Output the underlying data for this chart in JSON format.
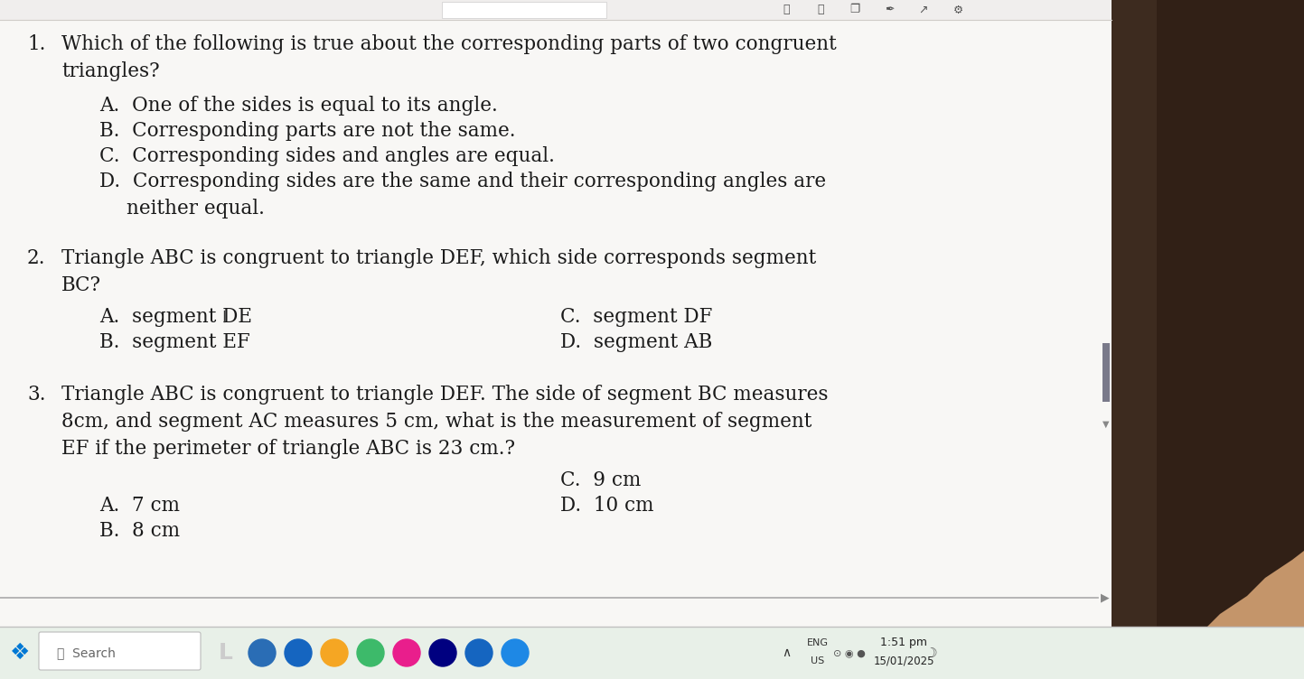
{
  "bg_color": "#f0eeeb",
  "content_bg": "#f8f7f5",
  "text_color": "#1a1a1a",
  "font_size_body": 15.5,
  "q1_number": "1.",
  "q2_number": "2.",
  "q3_number": "3.",
  "q1_line1": "Which of the following is true about the corresponding parts of two congruent",
  "q1_line2": "triangles?",
  "q1_optA": "A.  One of the sides is equal to its angle.",
  "q1_optB": "B.  Corresponding parts are not the same.",
  "q1_optC": "C.  Corresponding sides and angles are equal.",
  "q1_optD1": "D.  Corresponding sides are the same and their corresponding angles are",
  "q1_optD2": "neither equal.",
  "q2_line1": "Triangle ABC is congruent to triangle DEF, which side corresponds segment",
  "q2_line2": "BC?",
  "q2_optA": "A.  segment DE",
  "q2_optB": "B.  segment EF",
  "q2_optC": "C.  segment DF",
  "q2_optD": "D.  segment AB",
  "q3_line1": "Triangle ABC is congruent to triangle DEF. The side of segment BC measures",
  "q3_line2": "8cm, and segment AC measures 5 cm, what is the measurement of segment",
  "q3_line3": "EF if the perimeter of triangle ABC is 23 cm.?",
  "q3_optA": "A.  7 cm",
  "q3_optB": "B.  8 cm",
  "q3_optC": "C.  9 cm",
  "q3_optD": "D.  10 cm",
  "time_text": "1:51 pm",
  "date_text": "15/01/2025",
  "eng_text": "ENG",
  "us_text": "US",
  "search_text": "Search",
  "taskbar_bg": "#e8f0e8",
  "taskbar_separator": "#c0c0c0",
  "right_bg": "#3d2b1f",
  "scrollbar_color": "#8a8a9a",
  "scrollbar_thumb": "#7a7a8a",
  "top_bar_bg": "#f0eeed",
  "top_bar_line": "#d0ccc8"
}
